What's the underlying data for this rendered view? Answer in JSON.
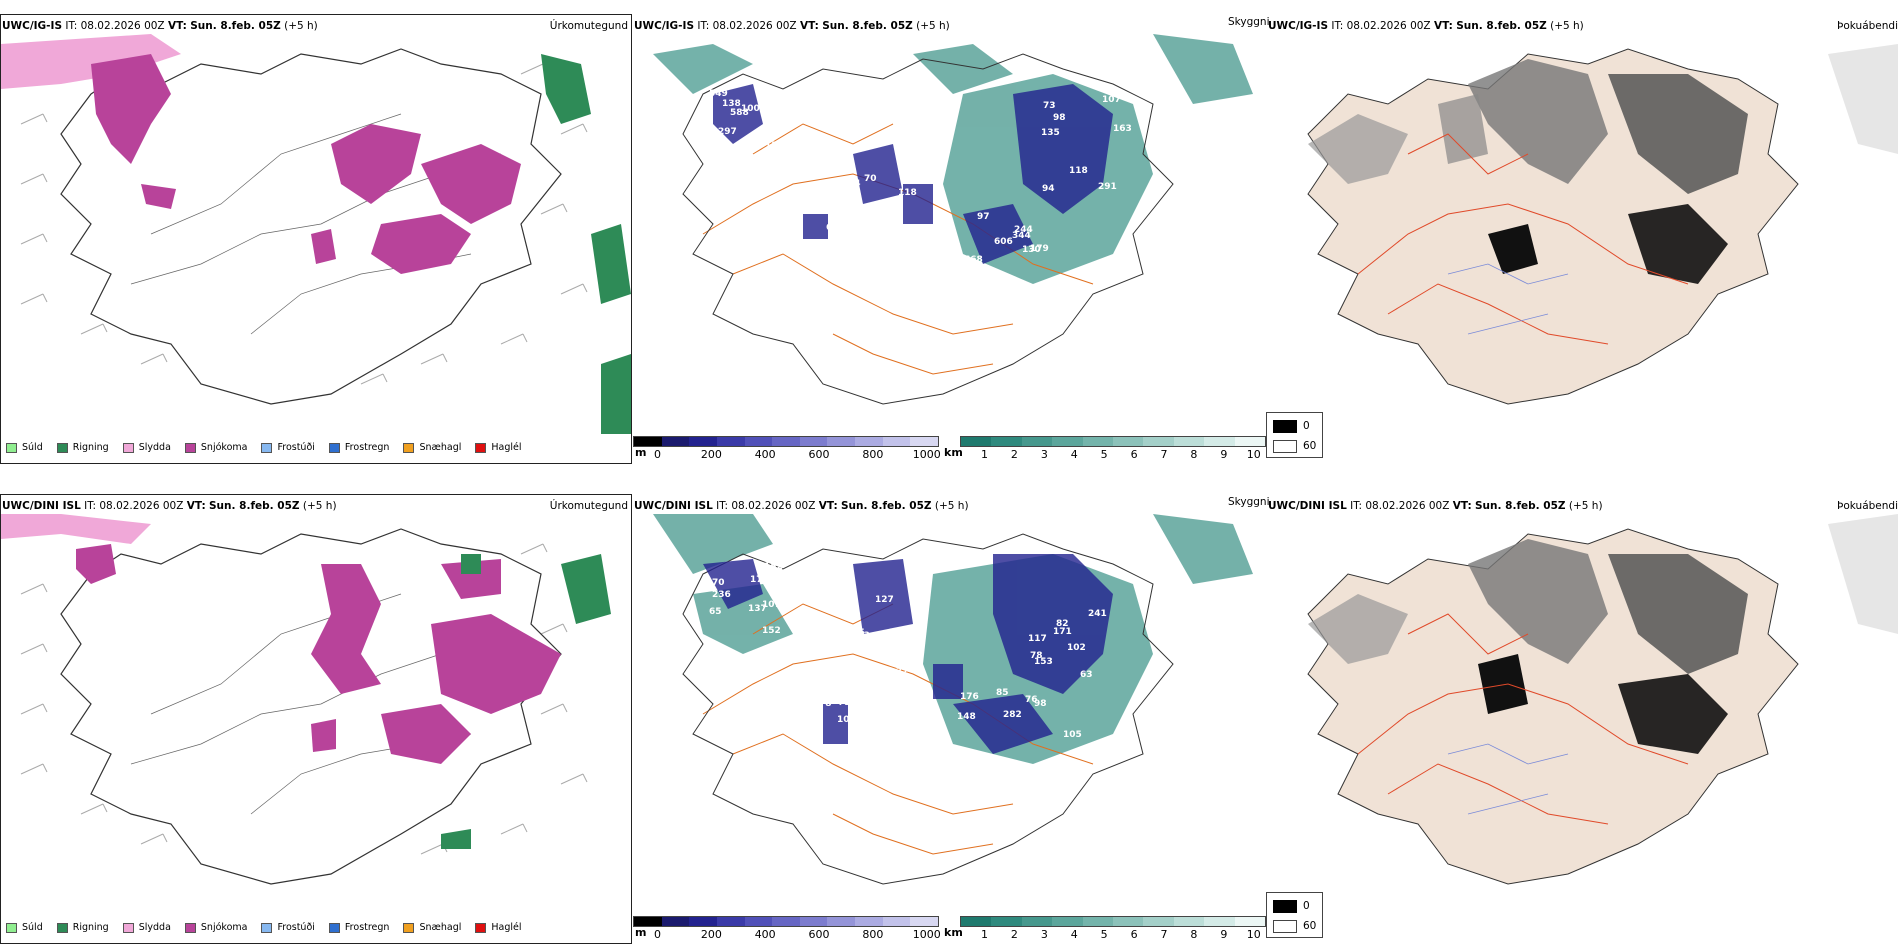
{
  "rows": [
    {
      "model": "UWC/IG-IS",
      "it_label": "IT:",
      "it_value": "08.02.2026 00Z",
      "vt_label": "VT:",
      "vt_value": "Sun. 8.feb. 05Z",
      "lead": "(+5 h)"
    },
    {
      "model": "UWC/DINI ISL",
      "it_label": "IT:",
      "it_value": "08.02.2026 00Z",
      "vt_label": "VT:",
      "vt_value": "Sun. 8.feb. 05Z",
      "lead": "(+5 h)"
    }
  ],
  "panel_titles": {
    "precip_type": "Úrkomutegund",
    "visibility": "Skyggni",
    "fog": "Þokuábendi"
  },
  "precip_legend": [
    {
      "label": "Súld",
      "color": "#90ee90"
    },
    {
      "label": "Rigning",
      "color": "#2e8b57"
    },
    {
      "label": "Slydda",
      "color": "#f0a8d8"
    },
    {
      "label": "Snjókoma",
      "color": "#b8439a"
    },
    {
      "label": "Frostúði",
      "color": "#87b8f0"
    },
    {
      "label": "Frostregn",
      "color": "#2f6fcf"
    },
    {
      "label": "Snæhagl",
      "color": "#f0a020"
    },
    {
      "label": "Haglél",
      "color": "#e01010"
    }
  ],
  "vis_m_bar": {
    "unit": "m",
    "ticks": [
      "0",
      "200",
      "400",
      "600",
      "800",
      "1000"
    ],
    "colors": [
      "#000000",
      "#1a1a6e",
      "#22228f",
      "#3a3aa8",
      "#5050b8",
      "#6666c4",
      "#7c7cce",
      "#9494d8",
      "#ababe2",
      "#c2c2ea",
      "#d8d8f2"
    ]
  },
  "vis_km_bar": {
    "unit": "km",
    "ticks": [
      "1",
      "2",
      "3",
      "4",
      "5",
      "6",
      "7",
      "8",
      "9",
      "10"
    ],
    "colors": [
      "#1f7a6e",
      "#2f8a7e",
      "#46988d",
      "#5ca69c",
      "#74b4ab",
      "#8cc2ba",
      "#a4d0c9",
      "#bcded8",
      "#d4ebe7",
      "#ecf7f5"
    ]
  },
  "fog_legend": {
    "low": "0",
    "high": "60"
  },
  "vis_labels_top": [
    "133",
    "117",
    "107",
    "606",
    "87",
    "167",
    "123",
    "98",
    "668",
    "101",
    "126",
    "94",
    "73",
    "244",
    "67",
    "549",
    "150",
    "163",
    "130",
    "587",
    "588",
    "70",
    "135",
    "97",
    "188",
    "297",
    "118",
    "291",
    "179",
    "135",
    "138",
    "106",
    "118",
    "91",
    "167",
    "100",
    "10",
    "94",
    "344"
  ],
  "vis_labels_bottom": [
    "152",
    "165",
    "102",
    "176",
    "105",
    "70",
    "159",
    "117",
    "98",
    "103",
    "175",
    "72",
    "153",
    "85",
    "78",
    "65",
    "80",
    "82",
    "148",
    "165",
    "152",
    "127",
    "241",
    "105",
    "75",
    "236",
    "233",
    "171",
    "282",
    "149",
    "137",
    "60",
    "78",
    "76",
    "78",
    "107",
    "97",
    "63"
  ]
}
